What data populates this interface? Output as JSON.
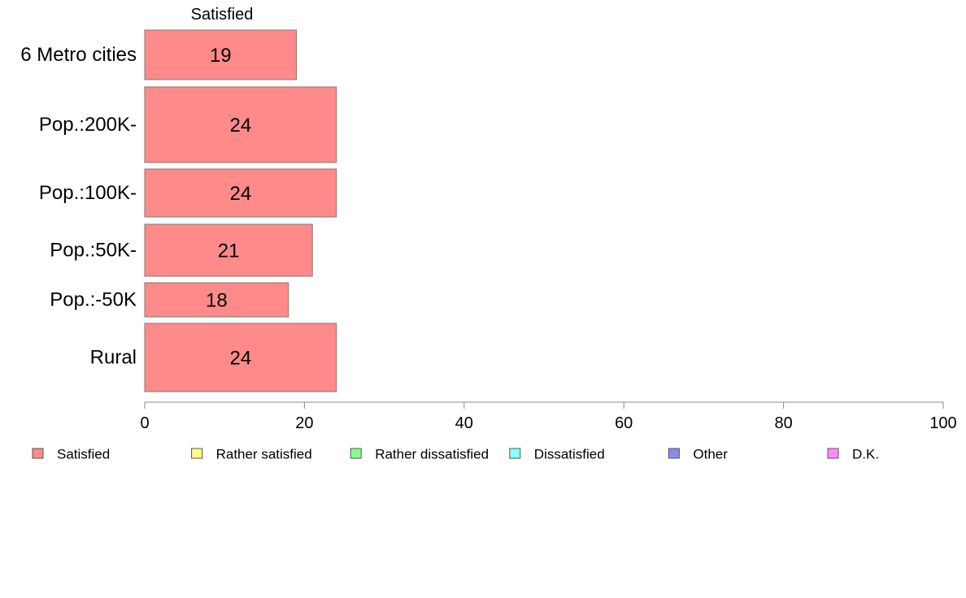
{
  "chart_data": {
    "type": "bar",
    "orientation": "horizontal",
    "stacked": true,
    "header_label": "Satisfied",
    "categories": [
      "6 Metro cities",
      "Pop.:200K-",
      "Pop.:100K-",
      "Pop.:50K-",
      "Pop.:-50K",
      "Rural"
    ],
    "series": [
      {
        "name": "Satisfied",
        "values": [
          19,
          24,
          24,
          21,
          18,
          24
        ],
        "color": "#ff8a8a"
      }
    ],
    "legend": [
      {
        "name": "Satisfied",
        "color": "#ff8a8a"
      },
      {
        "name": "Rather satisfied",
        "color": "#ffff8a"
      },
      {
        "name": "Rather dissatisfied",
        "color": "#8aff8a"
      },
      {
        "name": "Dissatisfied",
        "color": "#8affff"
      },
      {
        "name": "Other",
        "color": "#8a8aee"
      },
      {
        "name": "D.K.",
        "color": "#ff8aff"
      }
    ],
    "xlim": [
      0,
      100
    ],
    "xticks": [
      0,
      20,
      40,
      60,
      80,
      100
    ],
    "xlabel": "",
    "ylabel": "",
    "grid": false,
    "legend_position": "bottom"
  }
}
